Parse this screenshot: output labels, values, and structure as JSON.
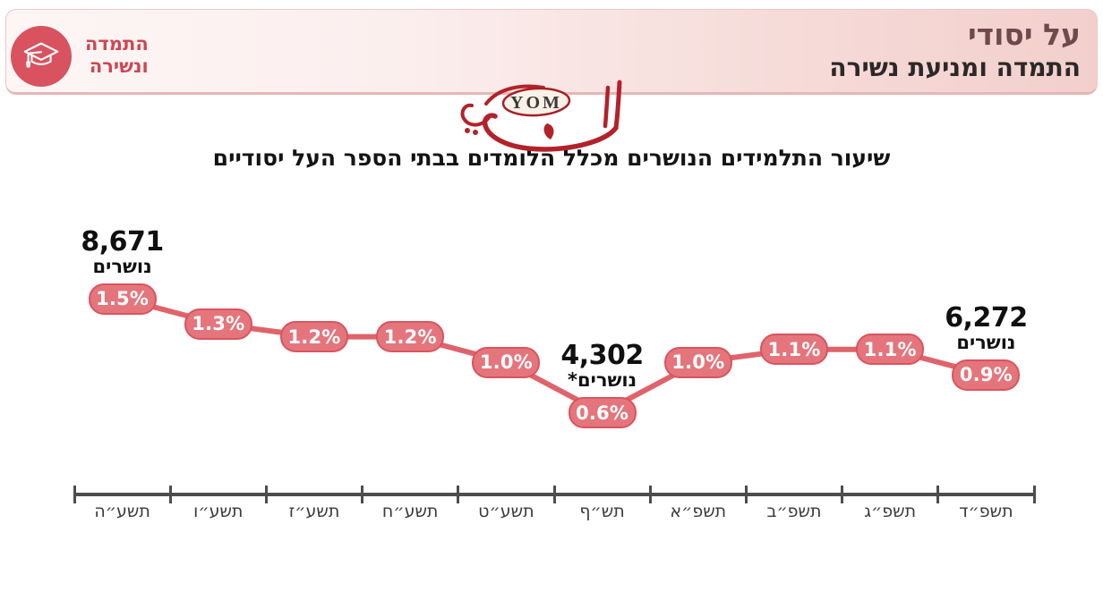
{
  "header": {
    "logo": {
      "icon": "graduation-cap-icon",
      "line1": "התמדה",
      "line2": "ונשירה"
    },
    "title": "על יסודי",
    "subtitle": "התמדה ומניעת נשירה"
  },
  "watermark": {
    "text": "YOM"
  },
  "chart_data": {
    "type": "line",
    "title": "שיעור התלמידים הנושרים מכלל הלומדים בבתי הספר העל יסודיים",
    "categories": [
      "תשע״ה",
      "תשע״ו",
      "תשע״ז",
      "תשע״ח",
      "תשע״ט",
      "תש״ף",
      "תשפ״א",
      "תשפ״ב",
      "תשפ״ג",
      "תשפ״ד"
    ],
    "values": [
      1.5,
      1.3,
      1.2,
      1.2,
      1.0,
      0.6,
      1.0,
      1.1,
      1.1,
      0.9
    ],
    "point_labels": [
      "1.5%",
      "1.3%",
      "1.2%",
      "1.2%",
      "1.0%",
      "0.6%",
      "1.0%",
      "1.1%",
      "1.1%",
      "0.9%"
    ],
    "annotations": [
      {
        "point_index": 0,
        "value": "8,671",
        "label": "נושרים"
      },
      {
        "point_index": 5,
        "value": "4,302",
        "label": "נושרים*"
      },
      {
        "point_index": 9,
        "value": "6,272",
        "label": "נושרים"
      }
    ],
    "ylabel": "",
    "xlabel": "",
    "ylim": [
      0.5,
      1.6
    ],
    "grid": false,
    "legend": "none",
    "line_color": "#df636b",
    "marker_fill": "#e5757c",
    "marker_border": "#d9545e",
    "axis_color": "#4d4d4d"
  }
}
